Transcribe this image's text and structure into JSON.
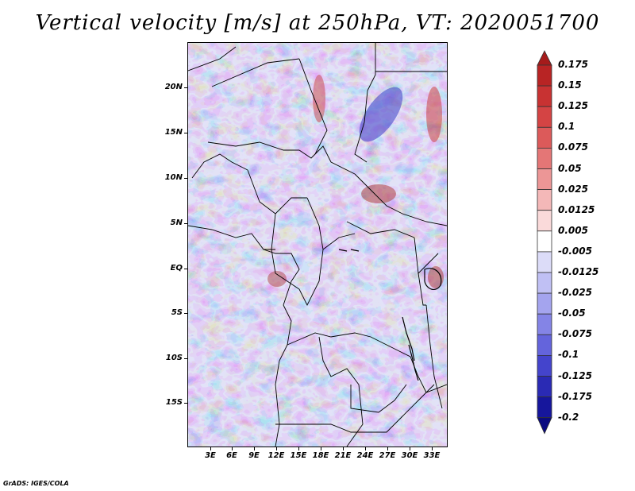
{
  "title": "Vertical velocity [m/s] at 250hPa, VT: 2020051700",
  "credit": "GrADS: IGES/COLA",
  "y_axis_labels": [
    "20N",
    "15N",
    "10N",
    "5N",
    "EQ",
    "5S",
    "10S",
    "15S"
  ],
  "x_axis_labels": [
    "3E",
    "6E",
    "9E",
    "12E",
    "15E",
    "18E",
    "21E",
    "24E",
    "27E",
    "30E",
    "33E"
  ],
  "colorbar": {
    "labels": [
      "0.175",
      "0.15",
      "0.125",
      "0.1",
      "0.075",
      "0.05",
      "0.025",
      "0.0125",
      "0.005",
      "-0.005",
      "-0.0125",
      "-0.025",
      "-0.05",
      "-0.075",
      "-0.1",
      "-0.125",
      "-0.175",
      "-0.2"
    ],
    "colors": [
      "#a51b1b",
      "#b82424",
      "#c83232",
      "#d44444",
      "#dc5a5a",
      "#e47676",
      "#ec9696",
      "#f4b8b8",
      "#fadada",
      "#ffffff",
      "#dcdcf8",
      "#c0c0f4",
      "#a4a4ee",
      "#8484e6",
      "#6464dc",
      "#4444cc",
      "#2a2ab4",
      "#16169c",
      "#0a0a80"
    ]
  },
  "colors": {
    "positive": "#d44444",
    "negative": "#6464dc",
    "neutral": "#ffffff"
  }
}
